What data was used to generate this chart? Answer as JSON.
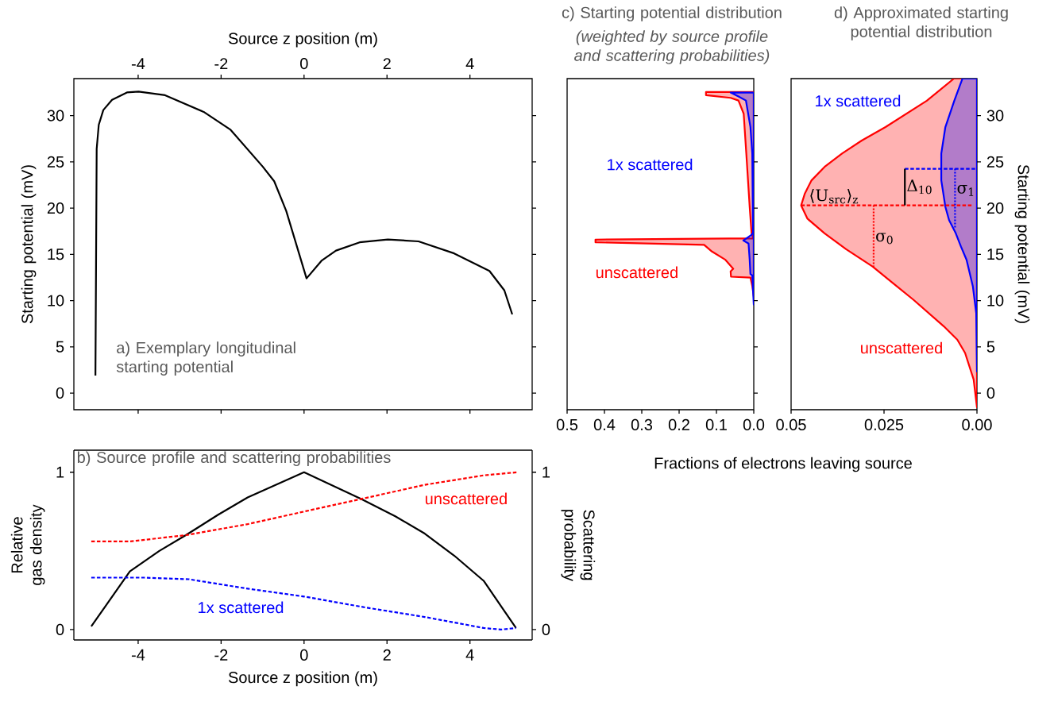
{
  "chart_data": [
    {
      "type": "line",
      "title": "a) Exemplary longitudinal starting potential",
      "xlabel": "Source z position (m)",
      "ylabel": "Starting potential (mV)",
      "xlim": [
        -5.55,
        5.5
      ],
      "xticks": [
        -4,
        -2,
        0,
        2,
        4
      ],
      "ylim": [
        -1.8,
        34
      ],
      "yticks": [
        0,
        5,
        10,
        15,
        20,
        25,
        30
      ],
      "series": [
        {
          "color": "#000000",
          "line_style": "solid",
          "x": [
            -5.03,
            -5.0,
            -4.95,
            -4.84,
            -4.63,
            -4.27,
            -3.99,
            -3.35,
            -2.42,
            -1.78,
            -1.0,
            -0.72,
            -0.43,
            0.06,
            0.42,
            0.77,
            1.34,
            2.02,
            2.76,
            3.62,
            4.47,
            4.83,
            5.02
          ],
          "values": [
            1.9,
            26.4,
            29.0,
            30.6,
            31.7,
            32.5,
            32.6,
            32.2,
            30.4,
            28.5,
            24.5,
            22.9,
            19.7,
            12.4,
            14.3,
            15.4,
            16.3,
            16.6,
            16.4,
            15.1,
            13.2,
            11.1,
            8.5
          ]
        }
      ]
    },
    {
      "type": "line",
      "title": "b) Source profile and scattering probabilities",
      "xlabel": "Source z position (m)",
      "ylabel": "Relative gas density",
      "y2label": "Scattering probability",
      "xlim": [
        -5.55,
        5.5
      ],
      "xticks": [
        -4,
        -2,
        0,
        2,
        4
      ],
      "ylim": [
        -0.066,
        1.14
      ],
      "yticks": [
        0,
        1
      ],
      "y2lim": [
        -0.066,
        1.14
      ],
      "y2ticks": [
        0,
        1
      ],
      "series": [
        {
          "color": "#000000",
          "line_style": "solid",
          "x": [
            -5.13,
            -4.2,
            -3.49,
            -2.85,
            -2.07,
            -1.36,
            0,
            1.38,
            2.2,
            2.91,
            3.62,
            4.33,
            5.11
          ],
          "values": [
            0.02,
            0.37,
            0.5,
            0.6,
            0.73,
            0.84,
            1.0,
            0.83,
            0.72,
            0.61,
            0.47,
            0.31,
            0.01
          ]
        },
        {
          "name": "unscattered",
          "color": "#ff0000",
          "axis": "y2",
          "line_style": "dashed",
          "x": [
            -5.13,
            -4.2,
            -2.85,
            -1.36,
            0,
            1.38,
            2.91,
            4.33,
            5.15
          ],
          "values": [
            0.56,
            0.56,
            0.6,
            0.67,
            0.75,
            0.83,
            0.92,
            0.98,
            1.0
          ]
        },
        {
          "name": "1x scattered",
          "color": "#0000ff",
          "axis": "y2",
          "line_style": "dashed",
          "x": [
            -5.13,
            -3.85,
            -2.78,
            -1.36,
            0,
            1.49,
            2.91,
            4.33,
            4.75,
            5.11
          ],
          "values": [
            0.33,
            0.33,
            0.32,
            0.26,
            0.21,
            0.14,
            0.08,
            0.01,
            0.0,
            0.01
          ]
        }
      ]
    },
    {
      "type": "area",
      "orientation": "horizontal",
      "title": "c) Starting potential distribution",
      "subtitle": "(weighted by source profile and scattering probabilities)",
      "xlabel": "Fractions of electrons leaving source",
      "xlim": [
        0.5,
        0.0
      ],
      "xticks": [
        0.5,
        0.4,
        0.3,
        0.2,
        0.1,
        {
          "value": 0,
          "label": "0.0"
        }
      ],
      "ylim": [
        -1.8,
        34
      ],
      "yticks": [
        0,
        5,
        10,
        15,
        20,
        25,
        30
      ],
      "tick_labels": "x",
      "series": [
        {
          "name": "unscattered",
          "color": "#ff0000",
          "x": [
            32.55,
            32.55,
            32.21,
            31.92,
            31.63,
            30.2,
            25.9,
            20.17,
            17.3,
            16.73,
            16.59,
            16.3,
            16.02,
            15.3,
            14.44,
            13.44,
            13.15,
            12.58,
            12.49,
            11.58,
            10.43
          ],
          "values": [
            0,
            0.128,
            0.128,
            0.062,
            0.041,
            0.027,
            0.02,
            0.011,
            0.006,
            0.002,
            0.424,
            0.424,
            0.133,
            0.112,
            0.077,
            0.055,
            0.062,
            0.061,
            0.009,
            0.004,
            0
          ]
        },
        {
          "name": "1x scattered",
          "color": "#0000ff",
          "x": [
            32.49,
            32.49,
            32.06,
            31.63,
            28.77,
            25.9,
            17.3,
            17.08,
            16.5,
            16.16,
            14.44,
            12.87,
            12.72,
            9.57
          ],
          "values": [
            0,
            0.062,
            0.041,
            0.021,
            0.009,
            0.004,
            0.002,
            0.007,
            0.028,
            0.014,
            0.011,
            0.009,
            0.004,
            0
          ]
        }
      ]
    },
    {
      "type": "area",
      "orientation": "horizontal",
      "title": "d) Approximated starting potential distribution",
      "ylabel": "Starting potential (mV)",
      "xlim": [
        0.05,
        0.0
      ],
      "xticks": [
        0.05,
        0.025,
        {
          "value": 0,
          "label": "0.00"
        }
      ],
      "ylim": [
        -1.8,
        34
      ],
      "yticks": [
        0,
        5,
        10,
        15,
        20,
        25,
        30
      ],
      "series": [
        {
          "name": "unscattered",
          "color": "#ff0000",
          "x": [
            -1.55,
            1.47,
            4.34,
            5.78,
            7.21,
            10.09,
            11.81,
            13.68,
            15.55,
            17.27,
            18.85,
            20.29,
            21.58,
            23.0,
            24.45,
            25.9,
            27.3,
            28.76,
            31.6,
            34.0
          ],
          "values": [
            0,
            0.0009,
            0.0032,
            0.0053,
            0.0089,
            0.0171,
            0.0224,
            0.0281,
            0.0352,
            0.041,
            0.0456,
            0.0473,
            0.0463,
            0.0445,
            0.041,
            0.0363,
            0.031,
            0.0246,
            0.0135,
            0.0062
          ]
        },
        {
          "name": "1x scattered",
          "color": "#0000ff",
          "x": [
            2.33,
            8.65,
            11.52,
            14.4,
            15.83,
            17.27,
            18.7,
            20.14,
            23.0,
            25.9,
            28.76,
            31.6,
            34.0
          ],
          "values": [
            0,
            0.0002,
            0.0011,
            0.0028,
            0.0043,
            0.0057,
            0.0075,
            0.0085,
            0.0096,
            0.0096,
            0.0085,
            0.0061,
            0.0039
          ]
        },
        {
          "type": "line",
          "color": "#ff0000",
          "line_style": "dashed",
          "x": [
            20.3,
            20.3
          ],
          "values": [
            0.0473,
            0.001
          ]
        },
        {
          "type": "line",
          "color": "#0000ff",
          "line_style": "dashed",
          "x": [
            24.25,
            24.25
          ],
          "values": [
            0.0194,
            0.0
          ]
        },
        {
          "type": "line",
          "color": "#ff0000",
          "line_style": "dotted",
          "x": [
            20.3,
            13.68
          ],
          "values": [
            0.0278,
            0.0278
          ]
        },
        {
          "type": "line",
          "color": "#0000ff",
          "line_style": "dotted",
          "x": [
            24.25,
            17.9
          ],
          "values": [
            0.0059,
            0.0059
          ]
        },
        {
          "type": "line",
          "color": "#000000",
          "line_style": "solid",
          "x": [
            20.3,
            24.25
          ],
          "values": [
            0.0194,
            0.0194
          ]
        }
      ],
      "annotations": [
        {
          "text": "⟨U$_{src}$⟩$_{z}$",
          "x": 0.0385,
          "y": 20.3
        },
        {
          "text": "Δ$_{10}$",
          "x": 0.0194,
          "y": 22.3
        },
        {
          "text": "σ$_{1}$",
          "x": 0.0059,
          "y": 21.9
        },
        {
          "text": "σ$_{0}$",
          "x": 0.0278,
          "y": 16.7
        }
      ]
    }
  ]
}
